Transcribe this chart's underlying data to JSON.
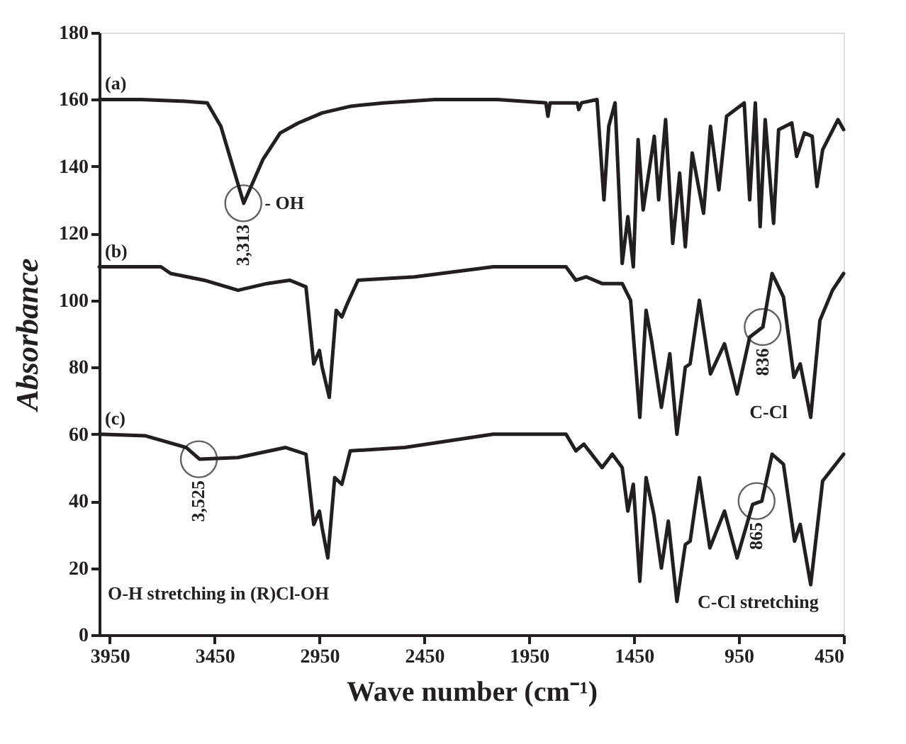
{
  "chart_data": {
    "type": "line",
    "xlabel": "Wave number (cm⁻¹)",
    "ylabel": "Absorbance",
    "xlim": [
      4000,
      450
    ],
    "xticks": [
      3950,
      3450,
      2950,
      2450,
      1950,
      1450,
      950,
      450
    ],
    "ylim": [
      0,
      180
    ],
    "yticks": [
      0,
      20,
      40,
      60,
      80,
      100,
      120,
      140,
      160,
      180
    ],
    "grid": false,
    "series": [
      {
        "name": "(a)",
        "color": "#231f20",
        "x": [
          4000,
          3800,
          3600,
          3485,
          3420,
          3311,
          3220,
          3137,
          3050,
          2937,
          2800,
          2643,
          2400,
          2100,
          1870,
          1860,
          1850,
          1720,
          1713,
          1700,
          1626,
          1593,
          1570,
          1540,
          1506,
          1479,
          1453,
          1430,
          1406,
          1353,
          1332,
          1299,
          1265,
          1232,
          1205,
          1172,
          1118,
          1085,
          1045,
          1008,
          924,
          898,
          871,
          848,
          824,
          784,
          760,
          697,
          674,
          637,
          600,
          577,
          550,
          477,
          450
        ],
        "values": [
          160,
          160,
          159.5,
          159,
          152,
          129,
          142,
          150,
          153,
          156,
          158,
          159,
          160,
          160,
          159,
          155,
          159,
          159,
          157,
          159,
          160,
          130,
          152,
          159,
          111,
          125,
          110,
          148,
          127,
          149,
          130,
          154,
          117,
          138,
          116,
          144,
          126,
          152,
          133,
          155,
          159,
          130,
          159,
          122,
          154,
          123,
          151,
          153,
          143,
          150,
          149,
          134,
          145,
          154,
          151
        ]
      },
      {
        "name": "(b)",
        "color": "#231f20",
        "x": [
          4000,
          3706,
          3659,
          3500,
          3338,
          3200,
          3091,
          3014,
          2977,
          2950,
          2937,
          2903,
          2870,
          2843,
          2817,
          2766,
          2496,
          2121,
          1774,
          1727,
          1677,
          1602,
          1506,
          1466,
          1422,
          1392,
          1366,
          1319,
          1279,
          1245,
          1205,
          1182,
          1138,
          1085,
          1018,
          958,
          898,
          835,
          791,
          737,
          687,
          657,
          607,
          563,
          503,
          450
        ],
        "values": [
          110,
          110,
          108,
          106,
          103,
          105,
          106,
          104,
          81,
          85,
          80,
          71,
          97,
          95,
          99,
          106,
          107,
          110,
          110,
          106,
          107,
          105,
          105,
          100,
          65,
          97,
          88,
          68,
          84,
          60,
          80,
          81,
          100,
          78,
          87,
          72,
          89,
          92,
          108,
          101,
          77,
          81,
          65,
          94,
          103,
          108
        ]
      },
      {
        "name": "(c)",
        "color": "#231f20",
        "x": [
          4000,
          3779,
          3585,
          3521,
          3338,
          3111,
          3014,
          2977,
          2950,
          2937,
          2910,
          2877,
          2843,
          2803,
          2543,
          2121,
          1774,
          1727,
          1689,
          1602,
          1553,
          1506,
          1479,
          1453,
          1422,
          1392,
          1355,
          1319,
          1286,
          1245,
          1205,
          1182,
          1138,
          1088,
          1018,
          958,
          884,
          840,
          791,
          737,
          684,
          657,
          607,
          550,
          450
        ],
        "values": [
          60,
          59.5,
          56,
          52.5,
          53,
          56,
          54,
          33,
          37,
          32,
          23,
          47,
          45,
          55,
          56,
          60,
          60,
          55,
          57,
          50,
          54,
          50,
          37,
          45,
          16,
          47,
          36,
          20,
          34,
          10,
          27,
          28,
          47,
          26,
          37,
          23,
          39,
          40,
          54,
          51,
          28,
          33,
          15,
          46,
          54
        ]
      }
    ],
    "annotations": [
      {
        "text": "3,313",
        "x": 3313,
        "y": 129
      },
      {
        "text": "3,525",
        "x": 3525,
        "y": 52.5
      },
      {
        "text": "836",
        "x": 836,
        "y": 92
      },
      {
        "text": "865",
        "x": 865,
        "y": 40
      },
      {
        "text": "- OH",
        "x": 3211,
        "y": 129
      },
      "C-Cl",
      "O-H stretching in (R)Cl-OH",
      "C-Cl stretching"
    ]
  }
}
